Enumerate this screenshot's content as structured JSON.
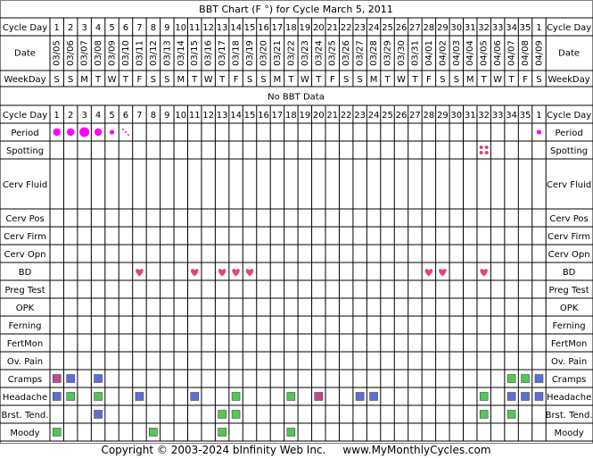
{
  "title": "BBT Chart (F °) for Cycle March 5, 2011",
  "no_data_text": "No BBT Data",
  "footer": "Copyright © 2003-2024 bInfinity Web Inc.     www.MyMonthlyCycles.com",
  "colors": {
    "border": "#7f7f7f",
    "grid": "#000000",
    "header_bg": "#d9dce6",
    "period": "#ff00ff",
    "heart": "#e0457b",
    "spotting": "#e0457b",
    "green": "#53c653",
    "blue": "#5b6fd6",
    "magenta": "#c04a8e"
  },
  "chart_data": {
    "type": "table",
    "cycle_days": [
      "1",
      "2",
      "3",
      "4",
      "5",
      "6",
      "7",
      "8",
      "9",
      "10",
      "11",
      "12",
      "13",
      "14",
      "15",
      "16",
      "17",
      "18",
      "19",
      "20",
      "21",
      "22",
      "23",
      "24",
      "25",
      "26",
      "27",
      "28",
      "29",
      "30",
      "31",
      "32",
      "33",
      "34",
      "35",
      "1"
    ],
    "dates": [
      "03/05",
      "03/06",
      "03/07",
      "03/08",
      "03/09",
      "03/10",
      "03/11",
      "03/12",
      "03/13",
      "03/14",
      "03/15",
      "03/16",
      "03/17",
      "03/18",
      "03/19",
      "03/20",
      "03/21",
      "03/22",
      "03/23",
      "03/24",
      "03/25",
      "03/26",
      "03/27",
      "03/28",
      "03/29",
      "03/30",
      "03/31",
      "04/01",
      "04/02",
      "04/03",
      "04/04",
      "04/05",
      "04/06",
      "04/07",
      "04/08",
      "04/09"
    ],
    "weekdays": [
      "S",
      "S",
      "M",
      "T",
      "W",
      "T",
      "F",
      "S",
      "S",
      "M",
      "T",
      "W",
      "T",
      "F",
      "S",
      "S",
      "M",
      "T",
      "W",
      "T",
      "F",
      "S",
      "S",
      "M",
      "T",
      "W",
      "T",
      "F",
      "S",
      "S",
      "M",
      "T",
      "W",
      "T",
      "F",
      "S"
    ],
    "row_labels": {
      "cycle_day": "Cycle Day",
      "date": "Date",
      "weekday": "WeekDay",
      "period": "Period",
      "spotting": "Spotting",
      "cerv_fluid": "Cerv Fluid",
      "cerv_pos": "Cerv Pos",
      "cerv_firm": "Cerv Firm",
      "cerv_opn": "Cerv Opn",
      "bd": "BD",
      "preg_test": "Preg Test",
      "opk": "OPK",
      "ferning": "Ferning",
      "fertmon": "FertMon",
      "ov_pain": "Ov. Pain",
      "cramps": "Cramps",
      "headache": "Headache",
      "brst_tend": "Brst. Tend.",
      "moody": "Moody"
    },
    "period": [
      {
        "day_index": 0,
        "level": "medium"
      },
      {
        "day_index": 1,
        "level": "medium"
      },
      {
        "day_index": 2,
        "level": "heavy"
      },
      {
        "day_index": 3,
        "level": "medium"
      },
      {
        "day_index": 4,
        "level": "light"
      },
      {
        "day_index": 5,
        "level": "spotting"
      },
      {
        "day_index": 35,
        "level": "light"
      }
    ],
    "spotting": [
      31
    ],
    "bd": [
      6,
      10,
      12,
      13,
      14,
      27,
      28,
      31
    ],
    "symptoms": {
      "cramps": [
        {
          "day_index": 0,
          "color": "magenta"
        },
        {
          "day_index": 1,
          "color": "blue"
        },
        {
          "day_index": 3,
          "color": "blue"
        },
        {
          "day_index": 33,
          "color": "green"
        },
        {
          "day_index": 34,
          "color": "green"
        },
        {
          "day_index": 35,
          "color": "blue"
        }
      ],
      "headache": [
        {
          "day_index": 0,
          "color": "blue"
        },
        {
          "day_index": 1,
          "color": "green"
        },
        {
          "day_index": 3,
          "color": "green"
        },
        {
          "day_index": 6,
          "color": "blue"
        },
        {
          "day_index": 10,
          "color": "blue"
        },
        {
          "day_index": 13,
          "color": "green"
        },
        {
          "day_index": 17,
          "color": "green"
        },
        {
          "day_index": 19,
          "color": "magenta"
        },
        {
          "day_index": 22,
          "color": "blue"
        },
        {
          "day_index": 23,
          "color": "blue"
        },
        {
          "day_index": 31,
          "color": "green"
        },
        {
          "day_index": 33,
          "color": "blue"
        },
        {
          "day_index": 34,
          "color": "blue"
        },
        {
          "day_index": 35,
          "color": "blue"
        }
      ],
      "brst_tend": [
        {
          "day_index": 3,
          "color": "blue"
        },
        {
          "day_index": 12,
          "color": "green"
        },
        {
          "day_index": 13,
          "color": "green"
        },
        {
          "day_index": 31,
          "color": "green"
        },
        {
          "day_index": 33,
          "color": "green"
        }
      ],
      "moody": [
        {
          "day_index": 0,
          "color": "green"
        },
        {
          "day_index": 7,
          "color": "green"
        },
        {
          "day_index": 12,
          "color": "green"
        },
        {
          "day_index": 17,
          "color": "green"
        }
      ]
    }
  }
}
